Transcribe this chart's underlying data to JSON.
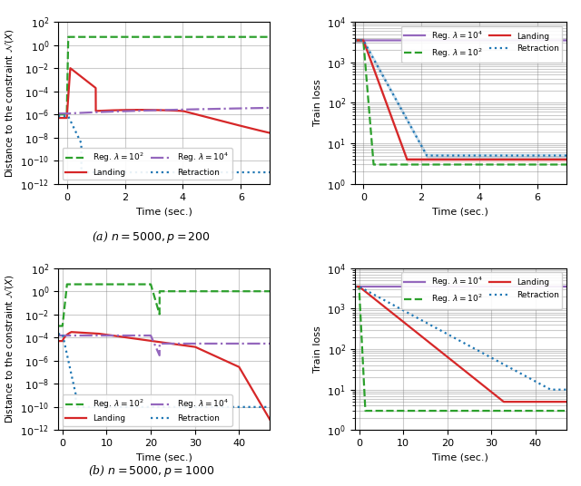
{
  "fig_width": 6.4,
  "fig_height": 5.36,
  "dpi": 100,
  "subplot_titles": [
    "(a) $n = 5000, p = 200$",
    "(b) $n = 5000, p = 1000$"
  ],
  "colors": {
    "landing": "#d62728",
    "retraction": "#1f77b4",
    "reg_1e2": "#2ca02c",
    "reg_1e4": "#9467bd"
  },
  "legend_labels": {
    "landing": "Landing",
    "retraction": "Retraction",
    "reg_1e2": "Reg. $\\lambda = 10^2$",
    "reg_1e4": "Reg. $\\lambda = 10^4$"
  },
  "top_left": {
    "xlabel": "Time (sec.)",
    "ylabel": "Distance to the constraint $\\mathcal{N}(X)$",
    "xlim": [
      -0.3,
      7
    ],
    "xticks": [
      0,
      2,
      4,
      6
    ],
    "ylim": [
      1e-12,
      100.0
    ]
  },
  "top_right": {
    "xlabel": "Time (sec.)",
    "ylabel": "Train loss",
    "xlim": [
      -0.3,
      7
    ],
    "xticks": [
      0,
      2,
      4,
      6
    ],
    "ylim": [
      1,
      10000.0
    ]
  },
  "bot_left": {
    "xlabel": "Time (sec.)",
    "ylabel": "Distance to the constraint $\\mathcal{N}(X)$",
    "xlim": [
      -1,
      47
    ],
    "xticks": [
      0,
      10,
      20,
      30,
      40
    ],
    "ylim": [
      1e-12,
      100.0
    ]
  },
  "bot_right": {
    "xlabel": "Time (sec.)",
    "ylabel": "Train loss",
    "xlim": [
      -1,
      47
    ],
    "xticks": [
      0,
      10,
      20,
      30,
      40
    ],
    "ylim": [
      1,
      10000.0
    ]
  }
}
